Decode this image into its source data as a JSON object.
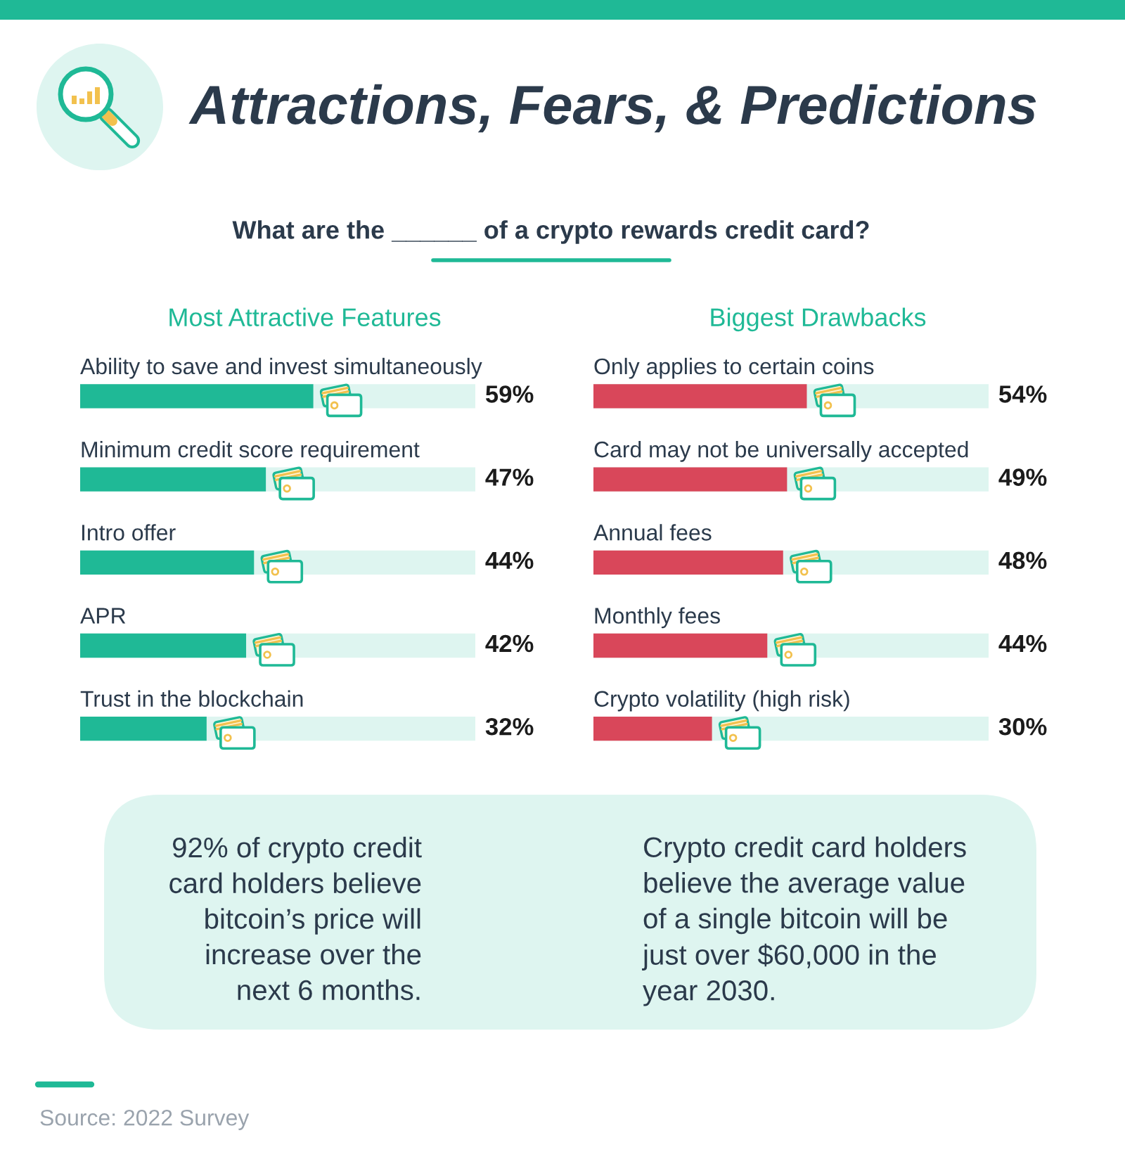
{
  "chart_data": [
    {
      "type": "other",
      "title": "Attractions, Fears, & Predictions",
      "subtitle": "What are the ______ of a crypto rewards credit card?"
    },
    {
      "type": "bar",
      "orientation": "horizontal",
      "title": "Most Attractive Features",
      "categories": [
        "Ability to save and invest simultaneously",
        "Minimum credit score requirement",
        "Intro offer",
        "APR",
        "Trust in the blockchain"
      ],
      "values": [
        59,
        47,
        44,
        42,
        32
      ],
      "value_labels": [
        "59%",
        "47%",
        "44%",
        "42%",
        "32%"
      ],
      "color": "#1fb996",
      "xlim": [
        0,
        100
      ],
      "tick_labels": "y"
    },
    {
      "type": "bar",
      "orientation": "horizontal",
      "title": "Biggest Drawbacks",
      "categories": [
        "Only applies to certain coins",
        "Card may not be universally accepted",
        "Annual fees",
        "Monthly fees",
        "Crypto volatility (high risk)"
      ],
      "values": [
        54,
        49,
        48,
        44,
        30
      ],
      "value_labels": [
        "54%",
        "49%",
        "48%",
        "44%",
        "30%"
      ],
      "color": "#d9475a",
      "xlim": [
        0,
        100
      ],
      "tick_labels": "y"
    },
    {
      "type": "other",
      "annotations": [
        "92% of crypto credit\ncard holders believe\nbitcoin’s price will\nincrease over the\nnext 6 months.",
        "Crypto credit card holders\nbelieve the average value\nof a single bitcoin will be\njust over $60,000 in the\nyear 2030.",
        "Source: 2022 Survey"
      ]
    }
  ]
}
